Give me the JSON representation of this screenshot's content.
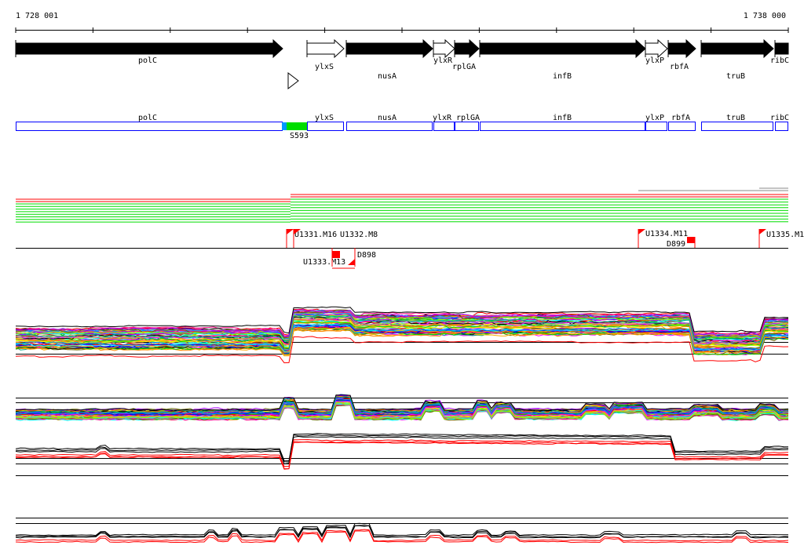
{
  "ruler": {
    "start_label": "1 728 001",
    "end_label": "1 738 000"
  },
  "genes": [
    {
      "name": "polC",
      "strand": "+",
      "style": "filled"
    },
    {
      "name": "ylxS",
      "strand": "+",
      "style": "open"
    },
    {
      "name": "nusA",
      "strand": "+",
      "style": "filled"
    },
    {
      "name": "ylxR",
      "strand": "+",
      "style": "open"
    },
    {
      "name": "rplGA",
      "strand": "+",
      "style": "filled"
    },
    {
      "name": "infB",
      "strand": "+",
      "style": "filled"
    },
    {
      "name": "ylxP",
      "strand": "+",
      "style": "open"
    },
    {
      "name": "rbfA",
      "strand": "+",
      "style": "filled"
    },
    {
      "name": "truB",
      "strand": "+",
      "style": "filled"
    },
    {
      "name": "ribC",
      "strand": "+",
      "style": "filled"
    }
  ],
  "feature_track": {
    "segment_label": "S593",
    "segment_color": "#00dd00",
    "marker_color": "#0099ff",
    "box_color": "#0000ff"
  },
  "markers": {
    "upper": [
      "U1331.M16",
      "U1332.M8",
      "U1334.M11",
      "U1335.M1"
    ],
    "lower": [
      "U1333.M13"
    ],
    "deletions": [
      "D898",
      "D899"
    ],
    "color": "#ff0000"
  },
  "colors": {
    "red": "#ff0000",
    "green": "#00dd00",
    "black": "#000000",
    "gray": "#888888",
    "trace_palette": [
      "#ff0000",
      "#00cc00",
      "#0000ff",
      "#ff00ff",
      "#00ffff",
      "#ffaa00",
      "#999999",
      "#88ff00",
      "#aa00ff",
      "#ff8800",
      "#0088ff",
      "#00aa88",
      "#ffff00",
      "#ff0088",
      "#000000",
      "#666600"
    ]
  }
}
